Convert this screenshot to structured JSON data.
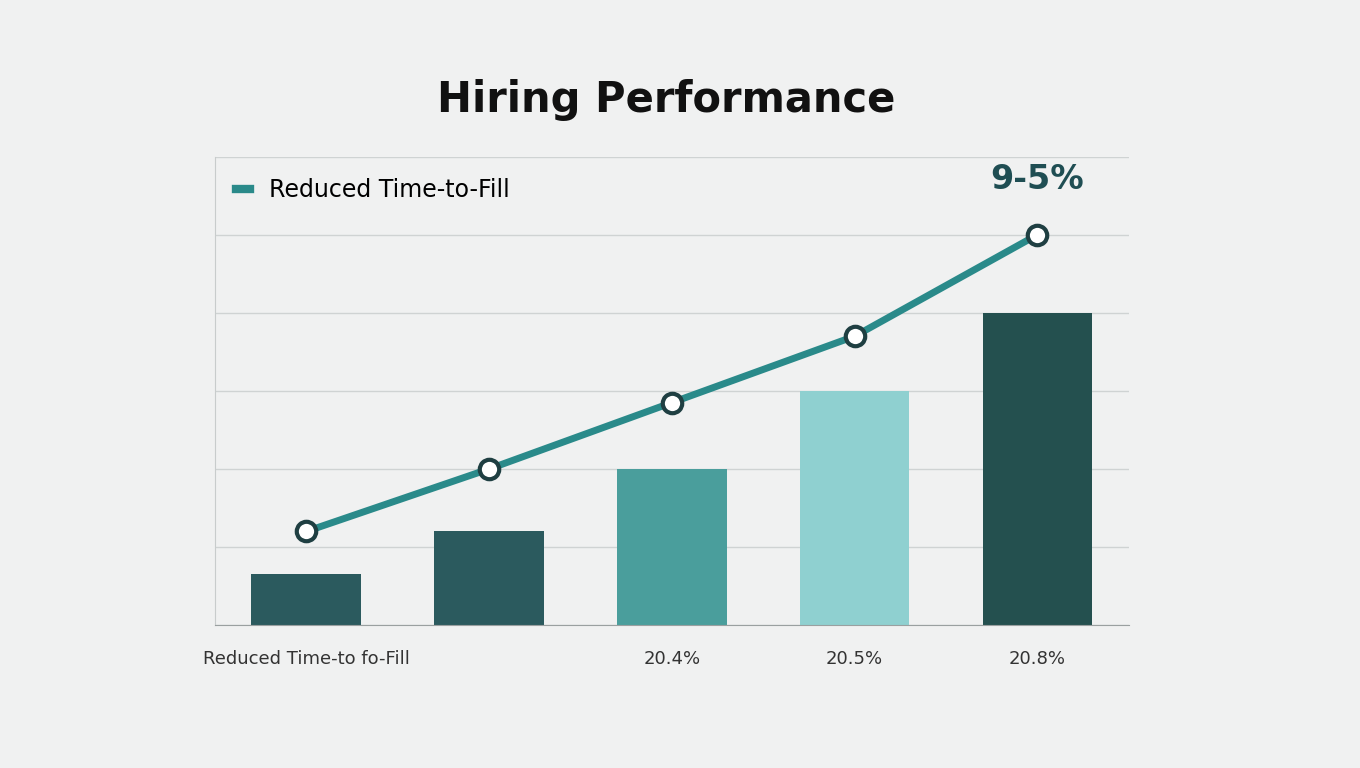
{
  "chart_data": {
    "type": "bar",
    "title": "Hiring Performance",
    "categories": [
      "Reduced Time-to fo-Fill",
      null,
      "20.4%",
      "20.5%",
      "20.8%"
    ],
    "values": [
      0.65,
      1.2,
      2.0,
      3.0,
      4.0
    ],
    "colors": [
      "#2b5a5e",
      "#2b5a5e",
      "#4a9e9c",
      "#8fd0d0",
      "#24504f"
    ],
    "series": [
      {
        "name": "Reduced Time-to-Fill",
        "type": "line",
        "color": "#2a8a8a",
        "marker": "circle",
        "values": [
          1.2,
          2.0,
          2.85,
          3.7,
          5.0
        ]
      }
    ],
    "annotation": "9-5%",
    "ylim": [
      0,
      6
    ],
    "yticks": [
      0,
      1,
      2,
      3,
      4,
      5,
      6
    ],
    "grid": true,
    "legend": "upper left",
    "tick_labels": "x"
  }
}
